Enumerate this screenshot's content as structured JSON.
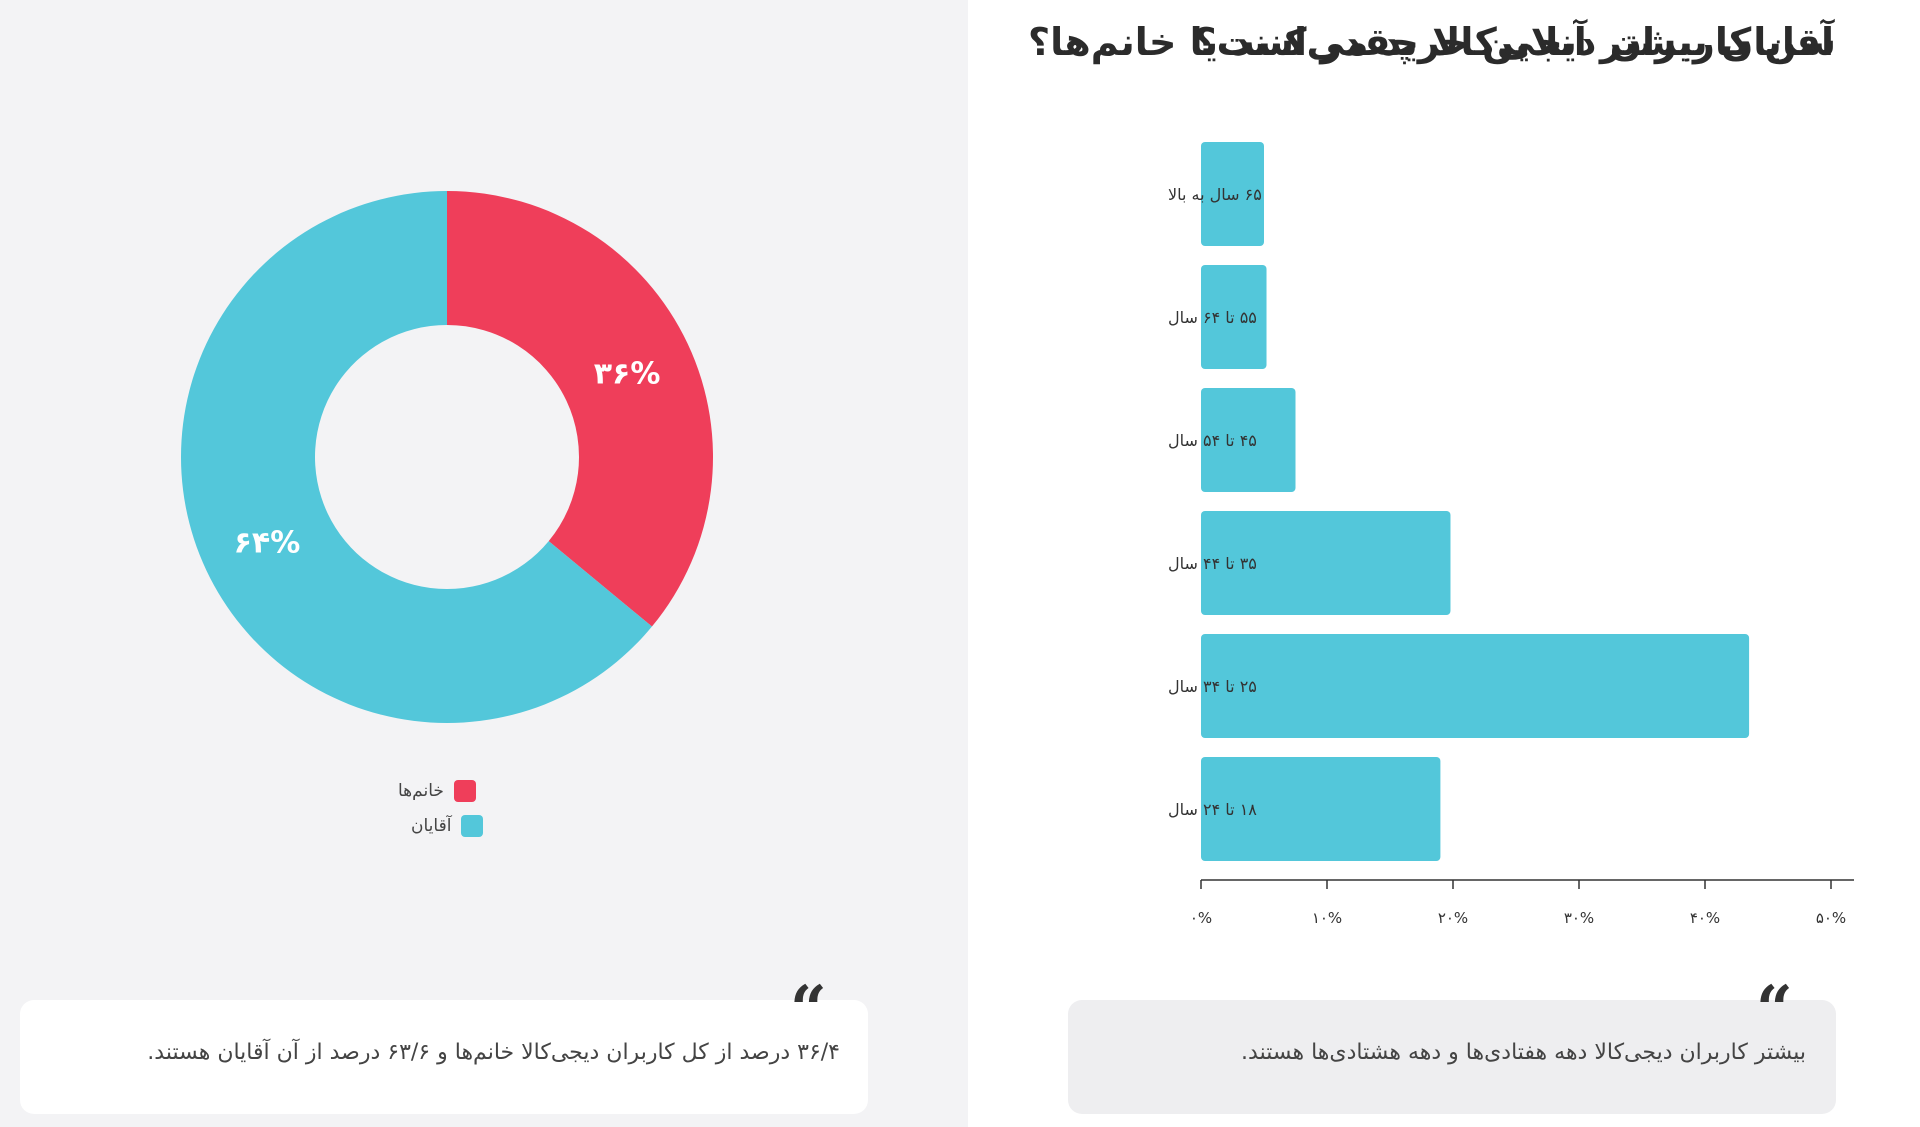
{
  "chart_data": [
    {
      "type": "pie",
      "title": "آقایان بیشتر آنلاین خرید می‌کنند یا خانم‌ها؟",
      "slices": [
        {
          "label": "خانم‌ها",
          "value": 36,
          "display": "۳۶%",
          "color": "#ef3e5a"
        },
        {
          "label": "آقایان",
          "value": 64,
          "display": "۶۴%",
          "color": "#53c7da"
        }
      ],
      "legend_position": "bottom-center",
      "quote": "۳۶/۴ درصد از کل کاربران دیجی‌کالا خانم‌ها و ۶۳/۶ درصد از آن آقایان هستند."
    },
    {
      "type": "bar",
      "orientation": "horizontal",
      "title": "سن کاربران دیجی‌کالا چقدر است؟",
      "categories": [
        "۶۵ سال به بالا",
        "۵۵ تا ۶۴ سال",
        "۴۵ تا ۵۴ سال",
        "۳۵ تا ۴۴ سال",
        "۲۵ تا ۳۴ سال",
        "۱۸ تا ۲۴ سال"
      ],
      "values": [
        5,
        5.2,
        7.5,
        19.8,
        43.5,
        19
      ],
      "xlim": [
        0,
        50
      ],
      "xticks": [
        0,
        10,
        20,
        30,
        40,
        50
      ],
      "xtick_labels": [
        "۰%",
        "۱۰%",
        "۲۰%",
        "۳۰%",
        "۴۰%",
        "۵۰%"
      ],
      "bar_color": "#53c7da",
      "grid": false,
      "quote": "بیشتر کاربران دیجی‌کالا دهه هفتادی‌ها و دهه هشتادی‌ها هستند."
    }
  ]
}
